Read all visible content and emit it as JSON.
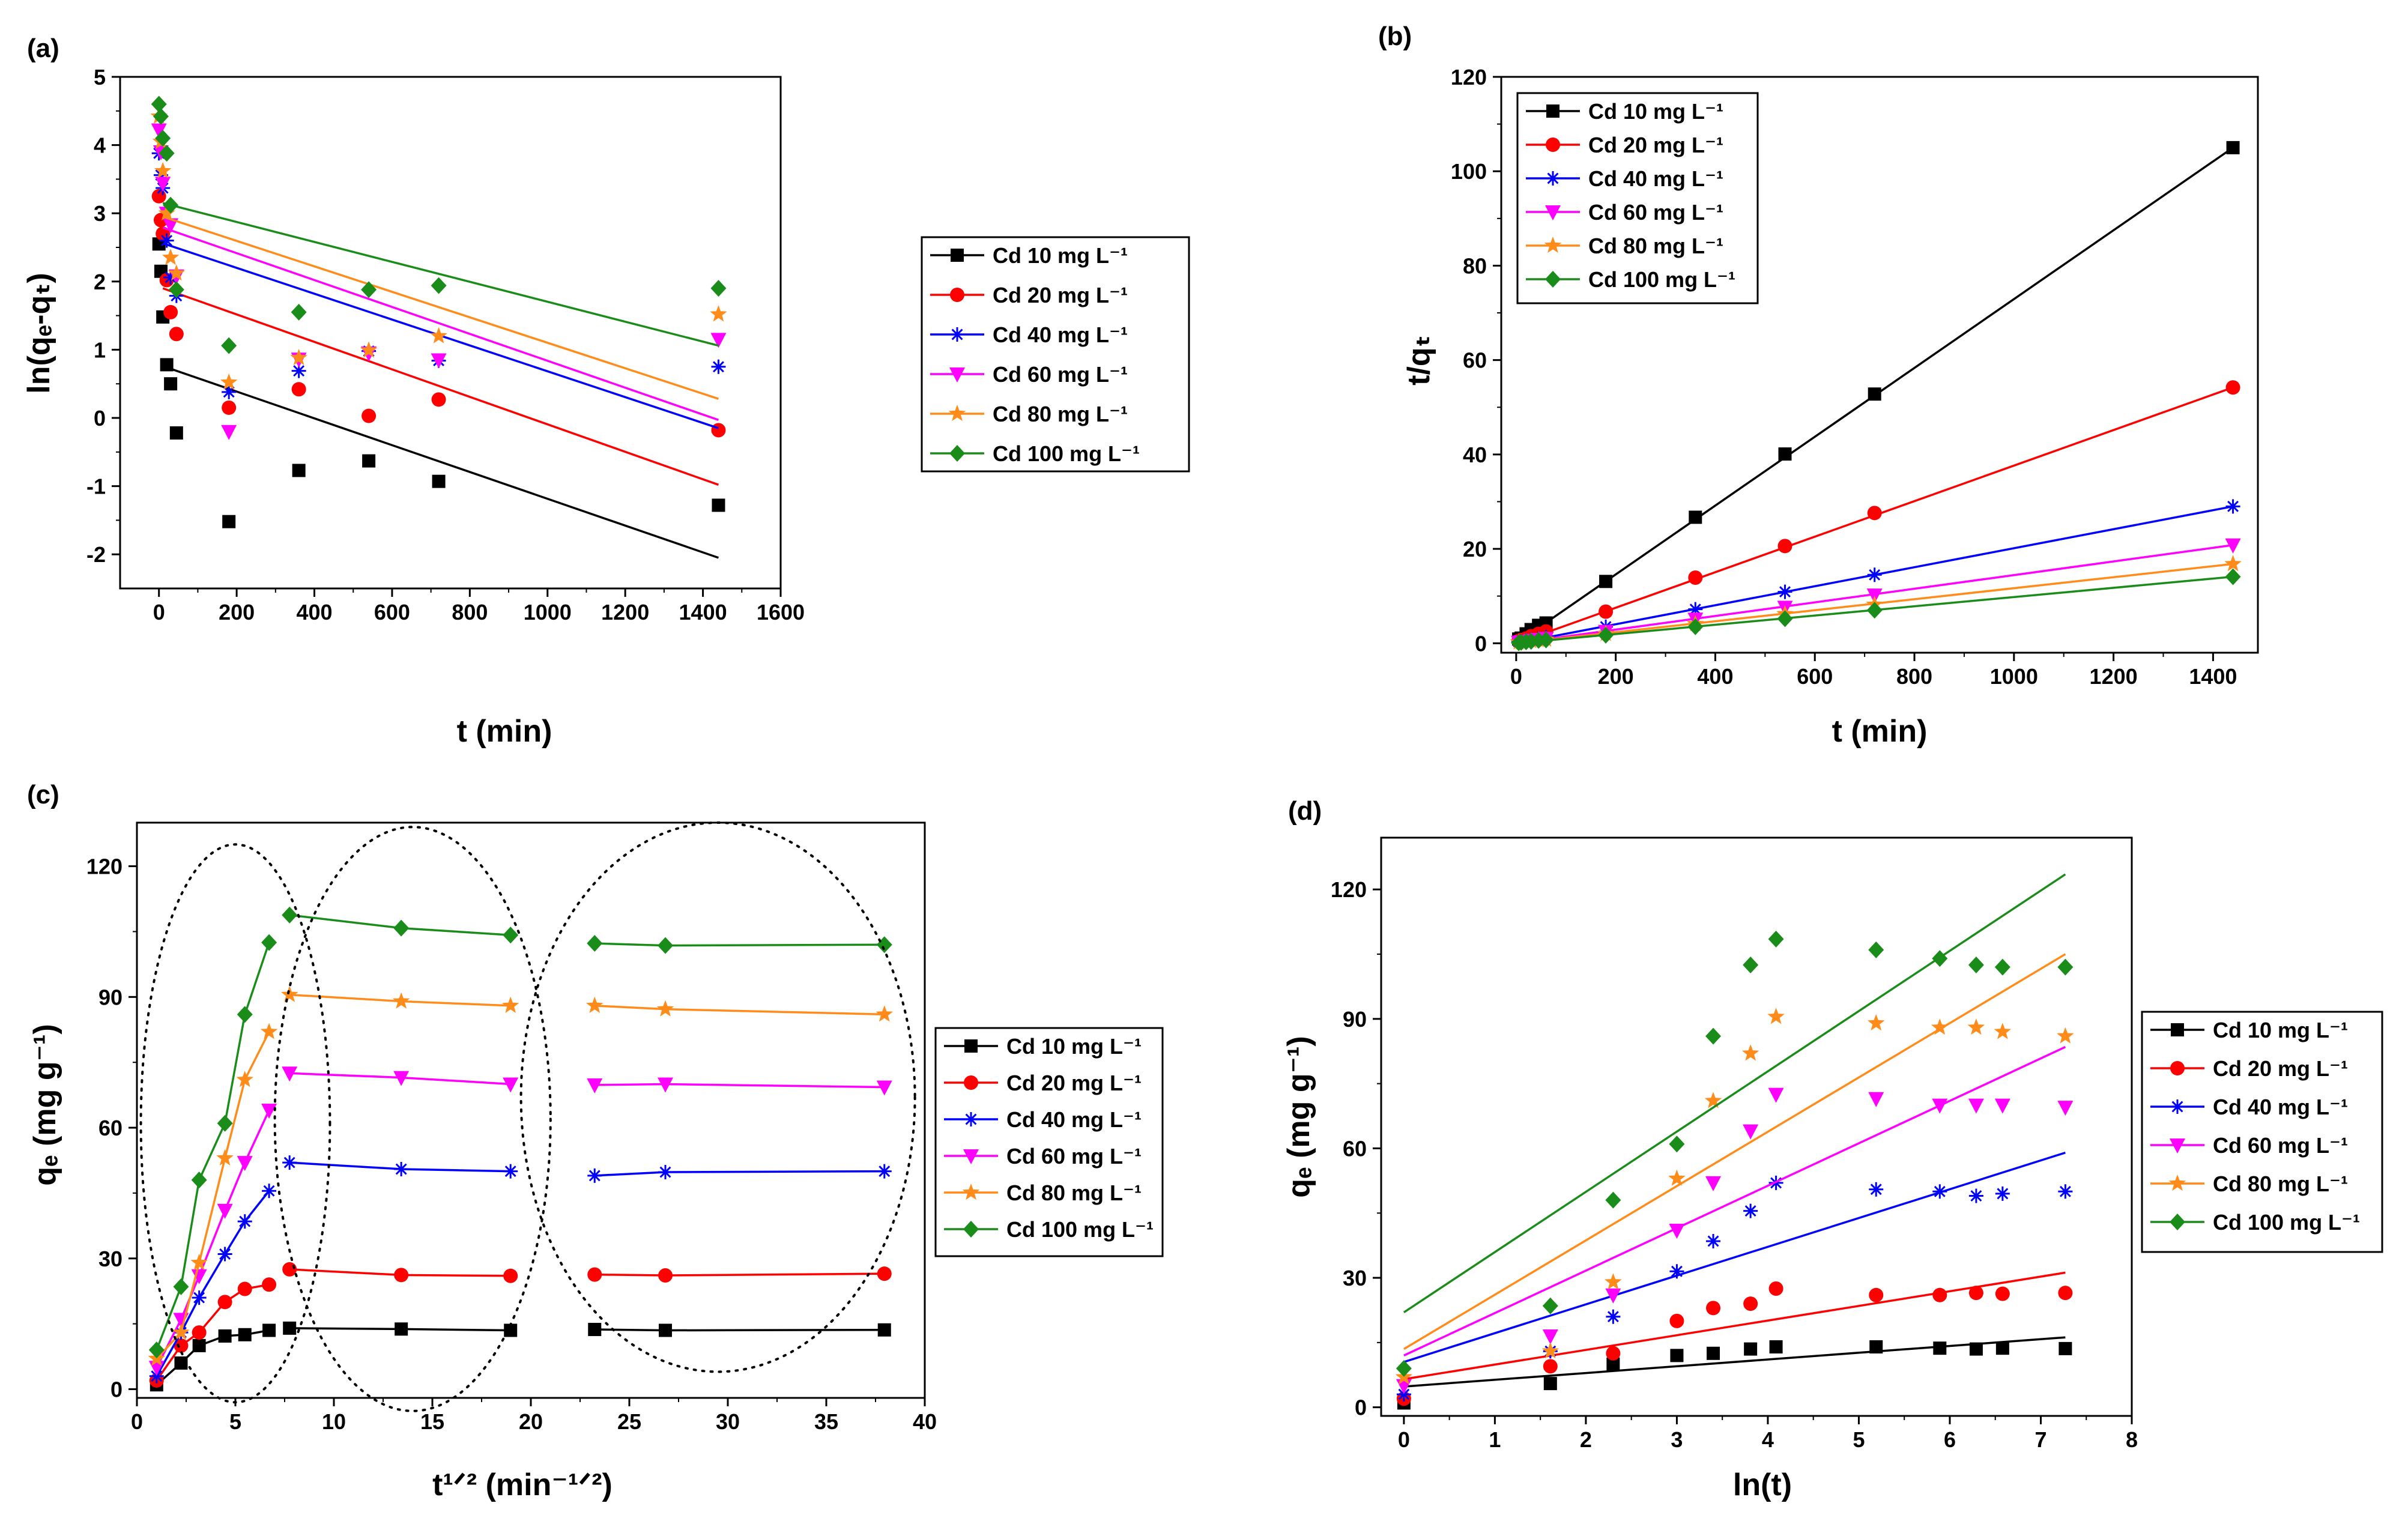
{
  "chart_data": [
    {
      "panel": "(a)",
      "type": "scatter",
      "title": "",
      "xlabel": "t (min)",
      "ylabel": "ln(qₑ-qₜ)",
      "xlim": [
        -100,
        1600
      ],
      "ylim": [
        -2.5,
        5
      ],
      "xticks": [
        0,
        200,
        400,
        600,
        800,
        1000,
        1200,
        1400,
        1600
      ],
      "yticks": [
        -2,
        -1,
        0,
        1,
        2,
        3,
        4,
        5
      ],
      "legend_position": "right",
      "series": [
        {
          "name": "Cd 10 mg L⁻¹",
          "color": "#000000",
          "marker": "square",
          "x": [
            0,
            5,
            10,
            20,
            30,
            45,
            180,
            360,
            540,
            720,
            1440
          ],
          "y": [
            2.55,
            2.15,
            1.48,
            0.78,
            0.5,
            -0.22,
            -1.52,
            -0.77,
            -0.63,
            -0.93,
            -1.28
          ],
          "fit": {
            "x": [
              10,
              1440
            ],
            "y": [
              0.76,
              -2.05
            ]
          }
        },
        {
          "name": "Cd 20 mg L⁻¹",
          "color": "#ff0000",
          "marker": "circle",
          "x": [
            0,
            5,
            10,
            20,
            30,
            45,
            180,
            360,
            540,
            720,
            1440
          ],
          "y": [
            3.25,
            2.9,
            2.7,
            2.02,
            1.55,
            1.23,
            0.15,
            0.42,
            0.03,
            0.27,
            -0.18
          ],
          "fit": {
            "x": [
              10,
              1440
            ],
            "y": [
              1.9,
              -0.98
            ]
          }
        },
        {
          "name": "Cd 40 mg L⁻¹",
          "color": "#0000ff",
          "marker": "asterisk",
          "x": [
            0,
            5,
            10,
            20,
            30,
            45,
            180,
            360,
            540,
            720,
            1440
          ],
          "y": [
            3.88,
            3.56,
            3.37,
            2.6,
            2.06,
            1.79,
            0.38,
            0.69,
            0.98,
            0.84,
            0.75
          ],
          "fit": {
            "x": [
              10,
              1440
            ],
            "y": [
              2.56,
              -0.15
            ]
          }
        },
        {
          "name": "Cd 60 mg L⁻¹",
          "color": "#ff00ff",
          "marker": "triangle-down",
          "x": [
            0,
            5,
            10,
            20,
            30,
            45,
            180,
            360,
            540,
            720,
            1440
          ],
          "y": [
            4.22,
            3.9,
            3.44,
            3.0,
            2.83,
            2.08,
            -0.2,
            0.86,
            0.95,
            0.85,
            1.15
          ],
          "fit": {
            "x": [
              10,
              1440
            ],
            "y": [
              2.79,
              -0.03
            ]
          }
        },
        {
          "name": "Cd 80 mg L⁻¹",
          "color": "#ff8c1a",
          "marker": "star",
          "x": [
            0,
            5,
            10,
            20,
            30,
            45,
            180,
            360,
            540,
            720,
            1440
          ],
          "y": [
            4.42,
            4.05,
            3.62,
            3.0,
            2.35,
            2.12,
            0.52,
            0.88,
            0.99,
            1.2,
            1.52
          ],
          "fit": {
            "x": [
              10,
              1440
            ],
            "y": [
              2.95,
              0.28
            ]
          }
        },
        {
          "name": "Cd 100 mg L⁻¹",
          "color": "#1a8c1a",
          "marker": "diamond",
          "x": [
            0,
            5,
            10,
            20,
            30,
            45,
            180,
            360,
            540,
            720,
            1440
          ],
          "y": [
            4.6,
            4.42,
            4.1,
            3.88,
            3.12,
            1.88,
            1.06,
            1.55,
            1.88,
            1.94,
            1.9
          ],
          "fit": {
            "x": [
              10,
              1440
            ],
            "y": [
              3.15,
              1.06
            ]
          }
        }
      ]
    },
    {
      "panel": "(b)",
      "type": "scatter",
      "title": "",
      "xlabel": "t (min)",
      "ylabel": "t/qₜ",
      "xlim": [
        -30,
        1490
      ],
      "ylim": [
        -2,
        120
      ],
      "xticks": [
        0,
        200,
        400,
        600,
        800,
        1000,
        1200,
        1400
      ],
      "yticks": [
        0,
        20,
        40,
        60,
        80,
        100,
        120
      ],
      "legend_position": "top-left",
      "series": [
        {
          "name": "Cd 10 mg L⁻¹",
          "color": "#000000",
          "marker": "square",
          "x": [
            5,
            10,
            20,
            30,
            45,
            60,
            180,
            360,
            540,
            720,
            1440
          ],
          "y": [
            0.9,
            1.1,
            2.0,
            2.9,
            3.8,
            4.3,
            13.1,
            26.7,
            40.1,
            52.8,
            105.0
          ],
          "fit": {
            "x": [
              0,
              1440
            ],
            "y": [
              0,
              105.0
            ]
          }
        },
        {
          "name": "Cd 20 mg L⁻¹",
          "color": "#ff0000",
          "marker": "circle",
          "x": [
            5,
            10,
            20,
            30,
            45,
            60,
            180,
            360,
            540,
            720,
            1440
          ],
          "y": [
            0.5,
            0.7,
            1.0,
            1.5,
            2.0,
            2.5,
            6.7,
            13.9,
            20.6,
            27.6,
            54.2
          ],
          "fit": {
            "x": [
              0,
              1440
            ],
            "y": [
              0,
              54.2
            ]
          }
        },
        {
          "name": "Cd 40 mg L⁻¹",
          "color": "#0000ff",
          "marker": "asterisk",
          "x": [
            5,
            10,
            20,
            30,
            45,
            60,
            180,
            360,
            540,
            720,
            1440
          ],
          "y": [
            0.3,
            0.4,
            0.6,
            0.8,
            1.0,
            1.3,
            3.5,
            7.2,
            10.9,
            14.5,
            29.0
          ],
          "fit": {
            "x": [
              0,
              1440
            ],
            "y": [
              0,
              29.0
            ]
          }
        },
        {
          "name": "Cd 60 mg L⁻¹",
          "color": "#ff00ff",
          "marker": "triangle-down",
          "x": [
            5,
            10,
            20,
            30,
            45,
            60,
            180,
            360,
            540,
            720,
            1440
          ],
          "y": [
            0.2,
            0.3,
            0.4,
            0.6,
            0.8,
            1.0,
            2.5,
            5.1,
            7.6,
            10.2,
            20.8
          ],
          "fit": {
            "x": [
              0,
              1440
            ],
            "y": [
              0,
              20.8
            ]
          }
        },
        {
          "name": "Cd 80 mg L⁻¹",
          "color": "#ff8c1a",
          "marker": "star",
          "x": [
            5,
            10,
            20,
            30,
            45,
            60,
            180,
            360,
            540,
            720,
            1440
          ],
          "y": [
            0.2,
            0.2,
            0.3,
            0.5,
            0.7,
            0.8,
            2.0,
            4.1,
            6.2,
            8.2,
            16.8
          ],
          "fit": {
            "x": [
              0,
              1440
            ],
            "y": [
              0,
              16.8
            ]
          }
        },
        {
          "name": "Cd 100 mg L⁻¹",
          "color": "#1a8c1a",
          "marker": "diamond",
          "x": [
            5,
            10,
            20,
            30,
            45,
            60,
            180,
            360,
            540,
            720,
            1440
          ],
          "y": [
            0.1,
            0.2,
            0.3,
            0.4,
            0.6,
            0.7,
            1.7,
            3.5,
            5.2,
            7.0,
            14.1
          ],
          "fit": {
            "x": [
              0,
              1440
            ],
            "y": [
              0,
              14.1
            ]
          }
        }
      ]
    },
    {
      "panel": "(c)",
      "type": "line",
      "title": "",
      "xlabel": "t¹ᐟ²  (min⁻¹ᐟ²)",
      "ylabel": "qₑ (mg g⁻¹)",
      "xlim": [
        0,
        40
      ],
      "ylim": [
        -2,
        130
      ],
      "xticks": [
        0,
        5,
        10,
        15,
        20,
        25,
        30,
        35,
        40
      ],
      "yticks": [
        0,
        30,
        60,
        90,
        120
      ],
      "legend_position": "right",
      "ellipses": [
        {
          "cx": 5.0,
          "cy": 61,
          "rx": 4.8,
          "ry": 64
        },
        {
          "cx": 14.0,
          "cy": 62,
          "rx": 7.0,
          "ry": 67
        },
        {
          "cx": 29.5,
          "cy": 67,
          "rx": 10.0,
          "ry": 63
        }
      ],
      "segments": [
        [
          0,
          6
        ],
        [
          6,
          9
        ],
        [
          9,
          12
        ]
      ],
      "series": [
        {
          "name": "Cd 10 mg L⁻¹",
          "color": "#000000",
          "marker": "square",
          "x": [
            1.0,
            2.24,
            3.16,
            4.47,
            5.48,
            6.71,
            7.75,
            13.42,
            18.97,
            23.24,
            26.83,
            37.95
          ],
          "y": [
            1.0,
            6.0,
            10.0,
            12.2,
            12.5,
            13.5,
            14.0,
            13.8,
            13.5,
            13.7,
            13.5,
            13.6
          ]
        },
        {
          "name": "Cd 20 mg L⁻¹",
          "color": "#ff0000",
          "marker": "circle",
          "x": [
            1.0,
            2.24,
            3.16,
            4.47,
            5.48,
            6.71,
            7.75,
            13.42,
            18.97,
            23.24,
            26.83,
            37.95
          ],
          "y": [
            2.0,
            10.0,
            13.0,
            20.0,
            23.0,
            24.0,
            27.5,
            26.2,
            26.0,
            26.3,
            26.1,
            26.5
          ]
        },
        {
          "name": "Cd 40 mg L⁻¹",
          "color": "#0000ff",
          "marker": "asterisk",
          "x": [
            1.0,
            2.24,
            3.16,
            4.47,
            5.48,
            6.71,
            7.75,
            13.42,
            18.97,
            23.24,
            26.83,
            37.95
          ],
          "y": [
            3.0,
            13.0,
            21.0,
            31.0,
            38.5,
            45.5,
            52.0,
            50.5,
            50.0,
            49.0,
            49.8,
            50.0
          ]
        },
        {
          "name": "Cd 60 mg L⁻¹",
          "color": "#ff00ff",
          "marker": "triangle-down",
          "x": [
            1.0,
            2.24,
            3.16,
            4.47,
            5.48,
            6.71,
            7.75,
            13.42,
            18.97,
            23.24,
            26.83,
            37.95
          ],
          "y": [
            5.0,
            16.0,
            26.0,
            41.0,
            52.0,
            64.0,
            72.5,
            71.5,
            70.0,
            69.8,
            70.0,
            69.3
          ]
        },
        {
          "name": "Cd 80 mg L⁻¹",
          "color": "#ff8c1a",
          "marker": "star",
          "x": [
            1.0,
            2.24,
            3.16,
            4.47,
            5.48,
            6.71,
            7.75,
            13.42,
            18.97,
            23.24,
            26.83,
            37.95
          ],
          "y": [
            7.0,
            13.0,
            29.0,
            53.0,
            71.0,
            82.0,
            90.5,
            89.0,
            88.0,
            88.0,
            87.2,
            86.0
          ]
        },
        {
          "name": "Cd 100 mg L⁻¹",
          "color": "#1a8c1a",
          "marker": "diamond",
          "x": [
            1.0,
            2.24,
            3.16,
            4.47,
            5.48,
            6.71,
            7.75,
            13.42,
            18.97,
            23.24,
            26.83,
            37.95
          ],
          "y": [
            9.0,
            23.5,
            48.0,
            61.0,
            86.0,
            102.5,
            108.8,
            105.8,
            104.2,
            102.3,
            101.8,
            102.0
          ]
        }
      ]
    },
    {
      "panel": "(d)",
      "type": "scatter",
      "title": "",
      "xlabel": "ln(t)",
      "ylabel": "qₑ (mg g⁻¹)",
      "xlim": [
        -0.25,
        8
      ],
      "ylim": [
        -2,
        132
      ],
      "xticks": [
        0,
        1,
        2,
        3,
        4,
        5,
        6,
        7,
        8
      ],
      "yticks": [
        0,
        30,
        60,
        90,
        120
      ],
      "legend_position": "right",
      "series": [
        {
          "name": "Cd 10 mg L⁻¹",
          "color": "#000000",
          "marker": "square",
          "x": [
            0,
            1.61,
            2.3,
            3.0,
            3.4,
            3.81,
            4.09,
            5.19,
            5.89,
            6.29,
            6.58,
            7.27
          ],
          "y": [
            1.0,
            5.5,
            10.0,
            12.0,
            12.5,
            13.5,
            14.0,
            14.0,
            13.7,
            13.5,
            13.7,
            13.6
          ],
          "fit": {
            "x": [
              0,
              7.27
            ],
            "y": [
              4.8,
              16.2
            ]
          }
        },
        {
          "name": "Cd 20 mg L⁻¹",
          "color": "#ff0000",
          "marker": "circle",
          "x": [
            0,
            1.61,
            2.3,
            3.0,
            3.4,
            3.81,
            4.09,
            5.19,
            5.89,
            6.29,
            6.58,
            7.27
          ],
          "y": [
            2.0,
            9.5,
            12.5,
            20.0,
            23.0,
            24.0,
            27.5,
            26.0,
            26.0,
            26.5,
            26.3,
            26.5
          ],
          "fit": {
            "x": [
              0,
              7.27
            ],
            "y": [
              6.5,
              31.2
            ]
          }
        },
        {
          "name": "Cd 40 mg L⁻¹",
          "color": "#0000ff",
          "marker": "asterisk",
          "x": [
            0,
            1.61,
            2.3,
            3.0,
            3.4,
            3.81,
            4.09,
            5.19,
            5.89,
            6.29,
            6.58,
            7.27
          ],
          "y": [
            3.0,
            13.0,
            21.0,
            31.5,
            38.5,
            45.5,
            52.0,
            50.5,
            50.0,
            49.0,
            49.5,
            50.0
          ],
          "fit": {
            "x": [
              0,
              7.27
            ],
            "y": [
              10.5,
              59.0
            ]
          }
        },
        {
          "name": "Cd 60 mg L⁻¹",
          "color": "#ff00ff",
          "marker": "triangle-down",
          "x": [
            0,
            1.61,
            2.3,
            3.0,
            3.4,
            3.81,
            4.09,
            5.19,
            5.89,
            6.29,
            6.58,
            7.27
          ],
          "y": [
            5.0,
            16.5,
            26.0,
            41.0,
            52.0,
            64.0,
            72.5,
            71.5,
            70.0,
            70.0,
            70.0,
            69.5
          ],
          "fit": {
            "x": [
              0,
              7.27
            ],
            "y": [
              12.0,
              83.5
            ]
          }
        },
        {
          "name": "Cd 80 mg L⁻¹",
          "color": "#ff8c1a",
          "marker": "star",
          "x": [
            0,
            1.61,
            2.3,
            3.0,
            3.4,
            3.81,
            4.09,
            5.19,
            5.89,
            6.29,
            6.58,
            7.27
          ],
          "y": [
            7.0,
            13.0,
            29.0,
            53.0,
            71.0,
            82.0,
            90.5,
            89.0,
            88.0,
            88.0,
            87.0,
            86.0
          ],
          "fit": {
            "x": [
              0,
              7.27
            ],
            "y": [
              13.5,
              105.0
            ]
          }
        },
        {
          "name": "Cd 100 mg L⁻¹",
          "color": "#1a8c1a",
          "marker": "diamond",
          "x": [
            0,
            1.61,
            2.3,
            3.0,
            3.4,
            3.81,
            4.09,
            5.19,
            5.89,
            6.29,
            6.58,
            7.27
          ],
          "y": [
            9.0,
            23.5,
            48.0,
            61.0,
            86.0,
            102.5,
            108.5,
            106.0,
            104.0,
            102.5,
            102.0,
            102.0
          ],
          "fit": {
            "x": [
              0,
              7.27
            ],
            "y": [
              22.0,
              123.5
            ]
          }
        }
      ]
    }
  ]
}
